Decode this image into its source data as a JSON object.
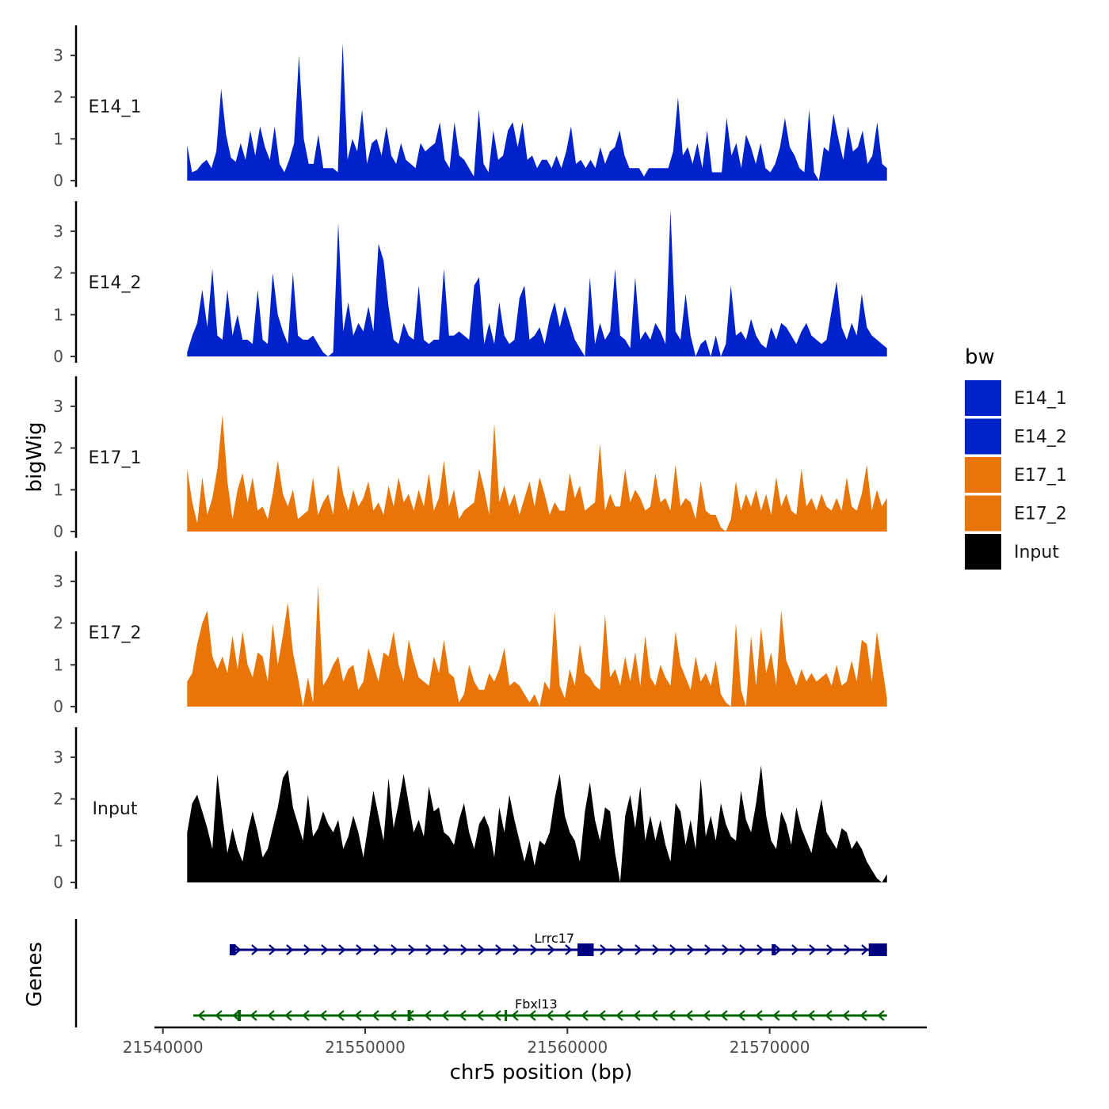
{
  "chart_data": {
    "type": "area",
    "x_axis": {
      "title": "chr5 position (bp)",
      "range": [
        21539700,
        21577300
      ],
      "ticks": [
        21540000,
        21550000,
        21560000,
        21570000
      ],
      "tick_labels": [
        "21540000",
        "21550000",
        "21560000",
        "21570000"
      ]
    },
    "y_axis": {
      "title": "bigWig",
      "range": [
        0,
        3.7
      ],
      "ticks": [
        0,
        1,
        2,
        3
      ],
      "tick_labels": [
        "0",
        "1",
        "2",
        "3"
      ]
    },
    "tracks": [
      {
        "name": "E14_1",
        "label": "E14_1",
        "color": "#0022cc",
        "start": 21541200,
        "end": 21575800,
        "values": [
          0.85,
          0.2,
          0.25,
          0.4,
          0.5,
          0.3,
          0.7,
          2.2,
          1.1,
          0.55,
          0.45,
          0.9,
          0.5,
          1.2,
          0.6,
          1.3,
          0.8,
          0.5,
          1.3,
          0.4,
          0.2,
          0.5,
          0.9,
          3.0,
          1.0,
          0.4,
          0.4,
          1.1,
          0.3,
          0.3,
          0.3,
          0.2,
          3.3,
          0.5,
          1.0,
          0.7,
          1.7,
          0.4,
          0.9,
          1.0,
          0.6,
          1.3,
          0.6,
          0.4,
          0.9,
          0.5,
          0.4,
          0.3,
          0.9,
          0.7,
          0.8,
          0.9,
          1.4,
          0.5,
          0.3,
          1.4,
          0.6,
          0.5,
          0.3,
          0.1,
          1.7,
          0.4,
          0.2,
          1.2,
          0.5,
          0.6,
          1.2,
          1.4,
          0.8,
          1.4,
          0.5,
          0.6,
          0.3,
          0.5,
          0.5,
          0.3,
          0.6,
          0.3,
          0.7,
          1.3,
          0.4,
          0.5,
          0.3,
          0.5,
          0.3,
          0.8,
          0.4,
          0.7,
          0.8,
          1.2,
          0.6,
          0.3,
          0.3,
          0.3,
          0.1,
          0.3,
          0.3,
          0.3,
          0.3,
          0.3,
          0.7,
          2.0,
          0.6,
          0.8,
          0.4,
          0.9,
          0.3,
          1.2,
          0.2,
          0.2,
          0.2,
          1.5,
          0.6,
          0.9,
          0.3,
          1.1,
          0.8,
          0.4,
          0.9,
          0.3,
          0.2,
          0.4,
          0.8,
          1.5,
          0.8,
          0.6,
          0.3,
          0.2,
          1.7,
          0.2,
          0.0,
          0.8,
          0.7,
          1.6,
          1.0,
          0.5,
          1.3,
          0.7,
          0.8,
          1.2,
          0.4,
          0.6,
          1.4,
          0.4,
          0.3
        ]
      },
      {
        "name": "E14_2",
        "label": "E14_2",
        "color": "#0022cc",
        "start": 21541200,
        "end": 21575800,
        "values": [
          0.1,
          0.5,
          0.8,
          1.6,
          0.7,
          2.1,
          0.5,
          0.4,
          1.6,
          0.5,
          1.0,
          0.4,
          0.4,
          0.3,
          1.6,
          0.4,
          0.3,
          2.0,
          1.0,
          0.6,
          0.3,
          2.0,
          0.5,
          0.4,
          0.4,
          0.5,
          0.3,
          0.1,
          0.0,
          0.1,
          3.2,
          0.6,
          1.3,
          0.5,
          0.8,
          0.6,
          1.2,
          0.6,
          2.7,
          2.3,
          1.2,
          0.4,
          0.3,
          0.8,
          0.5,
          0.4,
          1.7,
          0.4,
          0.3,
          0.4,
          0.4,
          2.1,
          0.5,
          0.5,
          0.6,
          0.5,
          0.4,
          1.7,
          1.9,
          0.3,
          0.8,
          0.3,
          1.3,
          0.5,
          0.3,
          0.4,
          1.4,
          1.7,
          0.4,
          0.5,
          0.7,
          0.3,
          0.9,
          1.3,
          0.7,
          1.2,
          0.8,
          0.4,
          0.2,
          0.0,
          1.9,
          0.3,
          0.8,
          0.4,
          0.6,
          2.1,
          0.5,
          0.4,
          0.2,
          1.9,
          0.4,
          0.6,
          0.4,
          0.8,
          0.6,
          0.3,
          3.5,
          0.6,
          0.4,
          1.5,
          0.5,
          0.0,
          0.3,
          0.4,
          0.0,
          0.5,
          0.0,
          0.3,
          1.7,
          0.5,
          0.6,
          0.4,
          0.9,
          0.5,
          0.3,
          0.2,
          0.7,
          0.4,
          0.8,
          0.7,
          0.5,
          0.3,
          0.6,
          0.8,
          0.5,
          0.4,
          0.3,
          0.4,
          1.1,
          1.8,
          0.7,
          0.4,
          0.8,
          0.5,
          1.5,
          0.7,
          0.5,
          0.4,
          0.3,
          0.2
        ]
      },
      {
        "name": "E17_1",
        "label": "E17_1",
        "color": "#e87505",
        "start": 21541200,
        "end": 21575800,
        "values": [
          1.5,
          0.7,
          0.2,
          1.3,
          0.4,
          0.8,
          1.5,
          2.8,
          1.2,
          0.3,
          1.0,
          1.4,
          0.7,
          1.3,
          0.5,
          0.6,
          0.3,
          0.9,
          1.7,
          0.9,
          0.6,
          1.0,
          0.3,
          0.4,
          0.5,
          1.3,
          0.4,
          0.7,
          0.9,
          0.4,
          1.6,
          0.9,
          0.5,
          1.0,
          0.6,
          0.8,
          1.2,
          0.5,
          0.7,
          0.4,
          1.1,
          0.6,
          1.3,
          0.7,
          0.9,
          0.5,
          1.0,
          0.6,
          1.4,
          0.5,
          0.8,
          1.7,
          0.6,
          1.0,
          0.3,
          0.5,
          0.6,
          0.7,
          1.5,
          1.0,
          0.4,
          2.6,
          0.7,
          1.1,
          0.6,
          0.9,
          0.4,
          0.8,
          1.2,
          0.6,
          1.3,
          0.9,
          0.4,
          0.7,
          0.5,
          0.5,
          1.4,
          0.8,
          1.1,
          0.5,
          0.6,
          0.7,
          2.1,
          0.5,
          0.9,
          0.6,
          0.6,
          1.5,
          0.7,
          1.0,
          0.8,
          0.5,
          0.6,
          1.4,
          0.7,
          0.8,
          0.5,
          1.6,
          0.6,
          0.8,
          0.7,
          0.3,
          1.2,
          0.5,
          0.4,
          0.4,
          0.1,
          0.0,
          0.3,
          1.2,
          0.5,
          0.9,
          0.6,
          1.0,
          0.5,
          0.9,
          0.4,
          1.3,
          0.6,
          0.9,
          0.5,
          0.4,
          1.5,
          0.6,
          0.8,
          0.5,
          0.9,
          0.6,
          0.5,
          0.8,
          0.5,
          1.3,
          0.6,
          0.5,
          0.9,
          1.6,
          0.5,
          1.0,
          0.6,
          0.8
        ]
      },
      {
        "name": "E17_2",
        "label": "E17_2",
        "color": "#e87505",
        "start": 21541200,
        "end": 21575800,
        "values": [
          0.6,
          0.8,
          1.5,
          2.0,
          2.3,
          1.2,
          0.9,
          1.2,
          0.8,
          1.7,
          0.9,
          1.8,
          1.0,
          0.7,
          1.3,
          1.2,
          0.6,
          2.0,
          1.0,
          1.7,
          2.5,
          1.3,
          0.7,
          0.0,
          0.7,
          0.1,
          2.9,
          0.5,
          0.7,
          1.0,
          1.2,
          0.6,
          0.9,
          1.0,
          0.4,
          0.6,
          1.4,
          1.0,
          0.6,
          1.3,
          1.2,
          1.8,
          1.0,
          0.6,
          1.6,
          1.1,
          0.7,
          0.6,
          0.5,
          1.2,
          0.8,
          1.6,
          0.8,
          0.7,
          0.1,
          0.3,
          1.0,
          0.6,
          0.4,
          0.4,
          0.8,
          0.6,
          0.9,
          1.4,
          0.5,
          0.6,
          0.5,
          0.3,
          0.1,
          0.3,
          0.0,
          0.6,
          0.4,
          2.3,
          0.5,
          0.2,
          0.9,
          0.5,
          1.5,
          0.8,
          0.7,
          0.5,
          0.4,
          2.2,
          0.7,
          0.9,
          0.5,
          1.2,
          0.6,
          1.3,
          0.5,
          1.7,
          0.7,
          0.5,
          1.0,
          0.7,
          0.5,
          1.8,
          1.0,
          0.7,
          0.4,
          1.2,
          0.6,
          0.8,
          0.5,
          1.1,
          0.3,
          0.1,
          0.0,
          2.0,
          0.4,
          0.0,
          1.7,
          0.5,
          1.9,
          0.8,
          1.3,
          0.5,
          2.3,
          1.1,
          0.8,
          0.5,
          0.9,
          0.6,
          0.8,
          0.6,
          0.7,
          0.8,
          0.5,
          1.0,
          0.5,
          0.6,
          1.1,
          0.6,
          1.6,
          1.5,
          0.6,
          1.8,
          1.0,
          0.2
        ]
      },
      {
        "name": "Input",
        "label": "Input",
        "color": "#000000",
        "start": 21541200,
        "end": 21575800,
        "values": [
          1.2,
          1.9,
          2.1,
          1.7,
          1.3,
          0.8,
          2.6,
          1.6,
          0.7,
          1.3,
          0.8,
          0.5,
          1.2,
          1.7,
          1.2,
          0.6,
          0.8,
          1.3,
          1.8,
          2.5,
          2.7,
          1.8,
          1.4,
          1.0,
          2.1,
          1.1,
          1.3,
          1.7,
          1.4,
          1.2,
          1.5,
          0.8,
          1.1,
          1.6,
          1.2,
          0.6,
          1.4,
          2.2,
          1.6,
          1.0,
          2.5,
          1.3,
          1.9,
          2.6,
          1.9,
          1.2,
          1.5,
          1.1,
          2.3,
          1.7,
          1.8,
          1.2,
          1.1,
          0.9,
          1.5,
          1.9,
          1.2,
          0.8,
          1.4,
          1.6,
          1.3,
          0.6,
          1.8,
          1.2,
          2.1,
          1.5,
          1.0,
          0.5,
          1.0,
          0.4,
          1.0,
          0.9,
          1.2,
          2.0,
          2.6,
          1.6,
          1.2,
          1.0,
          0.5,
          1.7,
          2.4,
          1.5,
          1.0,
          1.8,
          1.7,
          0.7,
          0.0,
          1.6,
          2.1,
          1.3,
          2.3,
          1.0,
          1.6,
          1.0,
          1.5,
          0.9,
          0.5,
          1.9,
          1.7,
          0.9,
          1.5,
          0.8,
          2.5,
          1.1,
          1.6,
          1.0,
          1.9,
          1.4,
          1.1,
          1.0,
          2.2,
          1.5,
          1.2,
          1.9,
          2.8,
          1.6,
          1.0,
          0.8,
          1.7,
          1.4,
          0.9,
          1.8,
          1.3,
          1.0,
          0.7,
          1.4,
          2.0,
          1.2,
          1.0,
          0.8,
          1.3,
          1.2,
          0.8,
          1.0,
          0.8,
          0.5,
          0.3,
          0.1,
          0.0,
          0.2
        ]
      }
    ],
    "genes_track": {
      "title": "Genes",
      "genes": [
        {
          "name": "Lrrc17",
          "strand": "+",
          "color": "#000080",
          "start": 21543300,
          "end": 21575800,
          "exons": [
            [
              21543300,
              21543600
            ],
            [
              21560500,
              21561300
            ],
            [
              21570100,
              21570300
            ],
            [
              21574900,
              21575800
            ]
          ]
        },
        {
          "name": "Fbxl13",
          "strand": "-",
          "color": "#006400",
          "start": 21541500,
          "end": 21575800,
          "exons": [
            [
              21543700,
              21543850
            ],
            [
              21552100,
              21552250
            ],
            [
              21556900,
              21557000
            ]
          ]
        }
      ]
    },
    "legend": {
      "title": "bw",
      "position": "right",
      "entries": [
        {
          "label": "E14_1",
          "color": "#0022cc"
        },
        {
          "label": "E14_2",
          "color": "#0022cc"
        },
        {
          "label": "E17_1",
          "color": "#e87505"
        },
        {
          "label": "E17_2",
          "color": "#e87505"
        },
        {
          "label": "Input",
          "color": "#000000"
        }
      ]
    }
  }
}
